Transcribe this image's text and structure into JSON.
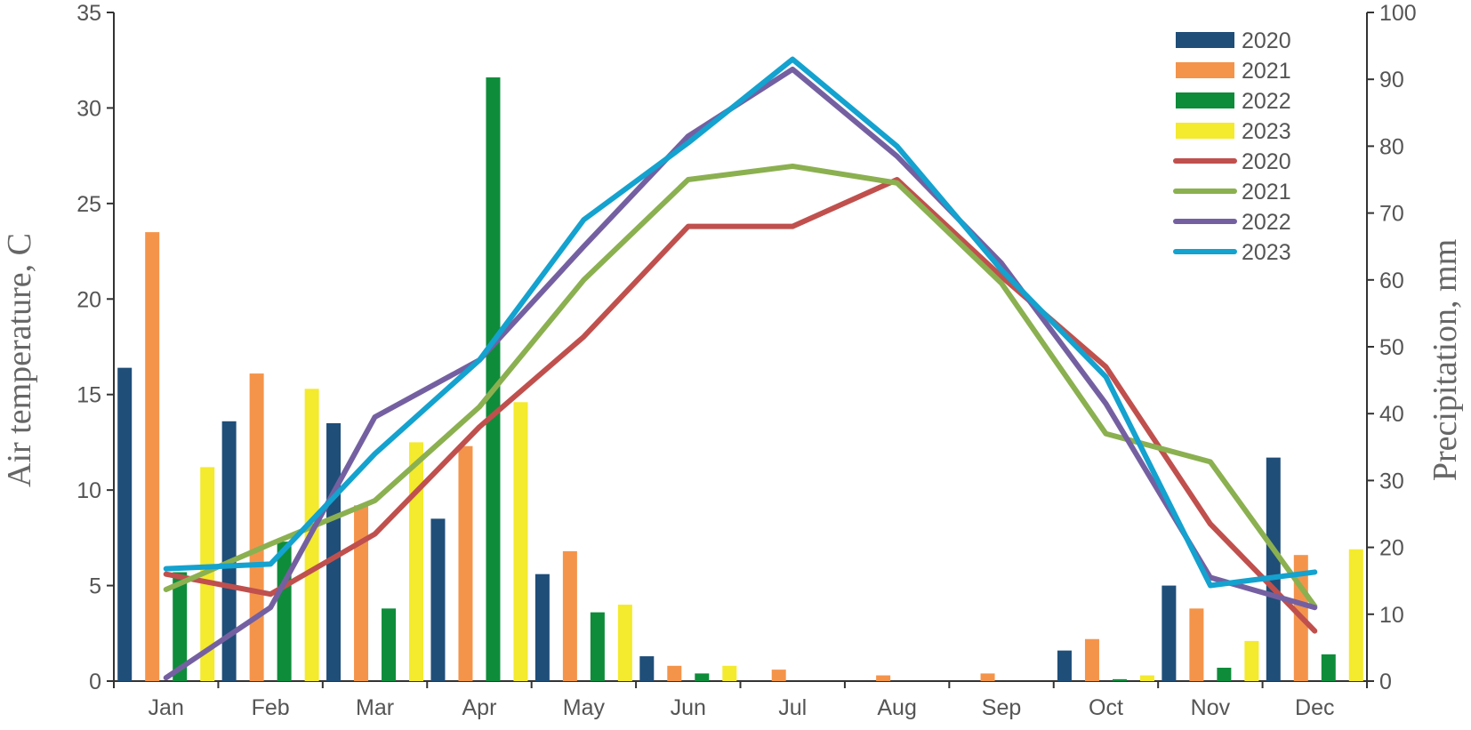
{
  "chart_data": {
    "type": "bar",
    "categories": [
      "Jan",
      "Feb",
      "Mar",
      "Apr",
      "May",
      "Jun",
      "Jul",
      "Aug",
      "Sep",
      "Oct",
      "Nov",
      "Dec"
    ],
    "ylabel_left": "Air temperature, C",
    "ylabel_right": "Precipitation, mm",
    "ylim_left": [
      0,
      35
    ],
    "yticks_left": [
      "0",
      "5",
      "10",
      "15",
      "20",
      "25",
      "30",
      "35"
    ],
    "ylim_right": [
      0,
      100
    ],
    "yticks_right": [
      "0",
      "10",
      "20",
      "30",
      "40",
      "50",
      "60",
      "70",
      "80",
      "90",
      "100"
    ],
    "bar_series": [
      {
        "name": "2020",
        "color": "#1f4e79",
        "axis": "left",
        "values": [
          16.4,
          13.6,
          13.5,
          8.5,
          5.6,
          1.3,
          0,
          0,
          0,
          1.6,
          5.0,
          11.7
        ]
      },
      {
        "name": "2021",
        "color": "#f4944b",
        "axis": "left",
        "values": [
          23.5,
          16.1,
          9.2,
          12.3,
          6.8,
          0.8,
          0.6,
          0.3,
          0.4,
          2.2,
          3.8,
          6.6
        ]
      },
      {
        "name": "2022",
        "color": "#0e8c3a",
        "axis": "left",
        "values": [
          5.7,
          7.3,
          3.8,
          31.6,
          3.6,
          0.4,
          0,
          0,
          0,
          0.1,
          0.7,
          1.4
        ]
      },
      {
        "name": "2023",
        "color": "#f4ea2e",
        "axis": "left",
        "values": [
          11.2,
          15.3,
          12.5,
          14.6,
          4.0,
          0.8,
          0,
          0,
          0,
          0.3,
          2.1,
          6.9
        ]
      }
    ],
    "line_series": [
      {
        "name": "2020",
        "color": "#c0504d",
        "axis": "right",
        "values": [
          16.0,
          13.0,
          22.0,
          38.0,
          51.5,
          68.0,
          68.0,
          75.0,
          60.5,
          47.0,
          23.5,
          7.5
        ]
      },
      {
        "name": "2021",
        "color": "#8bb050",
        "axis": "right",
        "values": [
          13.7,
          20.5,
          27.0,
          41.0,
          60.0,
          75.0,
          77.0,
          74.5,
          59.5,
          37.0,
          32.8,
          11.2
        ]
      },
      {
        "name": "2022",
        "color": "#7460a1",
        "axis": "right",
        "values": [
          0.5,
          11.0,
          39.5,
          48.0,
          65.0,
          81.5,
          91.5,
          78.5,
          62.5,
          41.5,
          15.5,
          11.0
        ]
      },
      {
        "name": "2023",
        "color": "#14a2cf",
        "axis": "right",
        "values": [
          16.8,
          17.5,
          34.0,
          48.0,
          69.0,
          80.5,
          93.0,
          80.0,
          61.5,
          45.5,
          14.3,
          16.3
        ]
      }
    ]
  }
}
